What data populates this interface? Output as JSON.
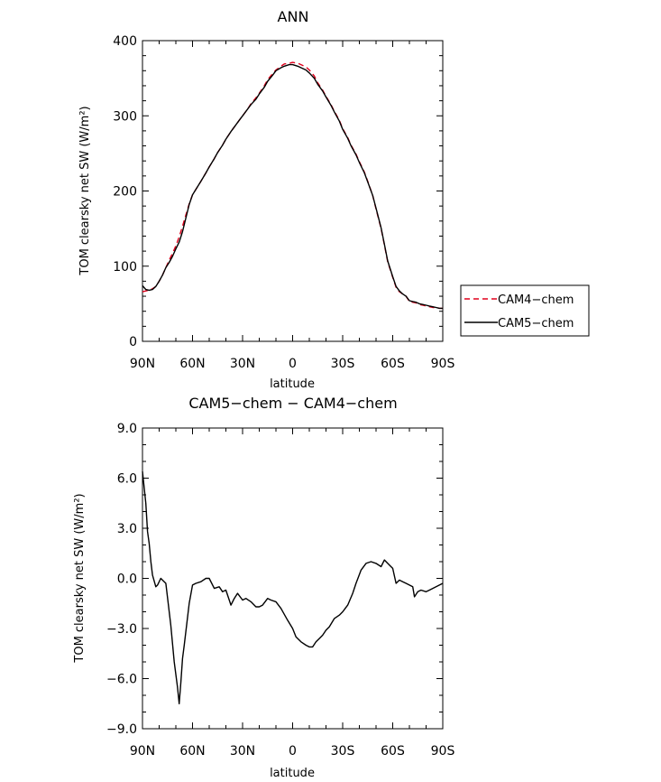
{
  "chart_data": [
    {
      "type": "line",
      "title": "ANN",
      "xlabel": "latitude",
      "ylabel": "TOM clearsky net SW (W/m²)",
      "xlim": [
        90,
        -90
      ],
      "ylim": [
        0,
        400
      ],
      "x_tick_values": [
        90,
        60,
        30,
        0,
        -30,
        -60,
        -90
      ],
      "x_tick_labels": [
        "90N",
        "60N",
        "30N",
        "0",
        "30S",
        "60S",
        "90S"
      ],
      "y_tick_values": [
        0,
        100,
        200,
        300,
        400
      ],
      "y_tick_labels": [
        "0",
        "100",
        "200",
        "300",
        "400"
      ],
      "legend": {
        "position": "right"
      },
      "x": [
        90,
        88,
        86,
        84,
        82,
        80,
        78,
        76,
        74,
        72,
        70,
        68,
        66,
        64,
        62,
        60,
        58,
        55,
        52,
        50,
        47,
        45,
        42,
        40,
        37,
        35,
        32,
        30,
        27,
        25,
        22,
        20,
        17,
        15,
        12,
        10,
        7,
        5,
        2,
        0,
        -3,
        -5,
        -8,
        -10,
        -13,
        -15,
        -18,
        -20,
        -23,
        -25,
        -28,
        -30,
        -33,
        -35,
        -38,
        -40,
        -43,
        -45,
        -48,
        -50,
        -53,
        -55,
        -57,
        -60,
        -62,
        -64,
        -66,
        -68,
        -70,
        -72,
        -74,
        -76,
        -78,
        -80,
        -82,
        -84,
        -86,
        -88,
        -90
      ],
      "series": [
        {
          "name": "CAM4−chem",
          "color": "#e0001b",
          "dash": true,
          "values": [
            66,
            67,
            68,
            70,
            73,
            80,
            88,
            98,
            108,
            117,
            127,
            139,
            153,
            168,
            183,
            195,
            202,
            213,
            224,
            232,
            243,
            251,
            261,
            269,
            279,
            285,
            294,
            300,
            309,
            316,
            324,
            330,
            340,
            348,
            356,
            361,
            366,
            369,
            370,
            371,
            370,
            368,
            365,
            361,
            353,
            344,
            334,
            326,
            315,
            306,
            294,
            283,
            271,
            261,
            249,
            239,
            225,
            213,
            194,
            176,
            150,
            128,
            106,
            85,
            72,
            66,
            63,
            60,
            53,
            52,
            51,
            49,
            48,
            47,
            46,
            45,
            45,
            44,
            44
          ]
        },
        {
          "name": "CAM5−chem",
          "color": "#000000",
          "dash": false,
          "values": [
            74,
            69,
            68,
            69,
            73,
            80,
            88,
            98,
            105,
            113,
            123,
            132,
            146,
            164,
            182,
            195,
            202,
            213,
            224,
            232,
            243,
            251,
            261,
            269,
            279,
            285,
            294,
            300,
            309,
            315,
            322,
            329,
            338,
            346,
            354,
            360,
            364,
            366,
            368,
            368,
            366,
            364,
            361,
            357,
            350,
            342,
            333,
            325,
            314,
            305,
            293,
            282,
            270,
            260,
            248,
            238,
            224,
            212,
            194,
            177,
            151,
            129,
            107,
            86,
            73,
            67,
            63,
            60,
            54,
            53,
            52,
            50,
            49,
            48,
            47,
            46,
            45,
            44,
            44
          ]
        }
      ]
    },
    {
      "type": "line",
      "title": "CAM5−chem − CAM4−chem",
      "xlabel": "latitude",
      "ylabel": "TOM clearsky net SW (W/m²)",
      "xlim": [
        90,
        -90
      ],
      "ylim": [
        -9,
        9
      ],
      "x_tick_values": [
        90,
        60,
        30,
        0,
        -30,
        -60,
        -90
      ],
      "x_tick_labels": [
        "90N",
        "60N",
        "30N",
        "0",
        "30S",
        "60S",
        "90S"
      ],
      "y_tick_values": [
        -9,
        -6,
        -3,
        0,
        3,
        6,
        9
      ],
      "y_tick_labels": [
        "−9.0",
        "−6.0",
        "−3.0",
        "0.0",
        "3.0",
        "6.0",
        "9.0"
      ],
      "x": [
        90,
        88,
        87,
        86,
        85,
        84,
        82,
        81,
        79,
        76,
        73,
        71,
        69,
        68,
        67,
        66,
        65,
        62,
        60,
        58,
        55,
        52,
        50,
        47,
        44,
        42,
        40,
        37,
        35,
        33,
        30,
        28,
        25,
        22,
        20,
        18,
        15,
        13,
        10,
        7,
        3,
        0,
        -2,
        -5,
        -8,
        -10,
        -12,
        -14,
        -16,
        -18,
        -20,
        -22,
        -25,
        -28,
        -30,
        -33,
        -36,
        -38,
        -41,
        -44,
        -47,
        -50,
        -53,
        -55,
        -58,
        -60,
        -62,
        -64,
        -66,
        -68,
        -70,
        -72,
        -73,
        -75,
        -77,
        -80,
        -82,
        -84,
        -86,
        -88,
        -90
      ],
      "series": [
        {
          "name": "",
          "color": "#000000",
          "dash": false,
          "values": [
            6.4,
            4.5,
            2.8,
            2.1,
            1.0,
            0.2,
            -0.5,
            -0.4,
            0.0,
            -0.3,
            -2.8,
            -5.0,
            -6.5,
            -7.5,
            -6.2,
            -4.8,
            -4.0,
            -1.5,
            -0.4,
            -0.3,
            -0.2,
            0.0,
            0.0,
            -0.6,
            -0.5,
            -0.8,
            -0.7,
            -1.6,
            -1.2,
            -0.9,
            -1.3,
            -1.2,
            -1.4,
            -1.7,
            -1.7,
            -1.6,
            -1.2,
            -1.3,
            -1.4,
            -1.8,
            -2.5,
            -3.0,
            -3.5,
            -3.8,
            -4.0,
            -4.1,
            -4.1,
            -3.8,
            -3.6,
            -3.4,
            -3.1,
            -2.9,
            -2.4,
            -2.2,
            -2.0,
            -1.6,
            -0.9,
            -0.3,
            0.5,
            0.9,
            1.0,
            0.9,
            0.7,
            1.1,
            0.8,
            0.6,
            -0.3,
            -0.1,
            -0.2,
            -0.3,
            -0.4,
            -0.5,
            -1.1,
            -0.8,
            -0.7,
            -0.8,
            -0.7,
            -0.6,
            -0.5,
            -0.4,
            -0.3
          ]
        }
      ]
    }
  ]
}
